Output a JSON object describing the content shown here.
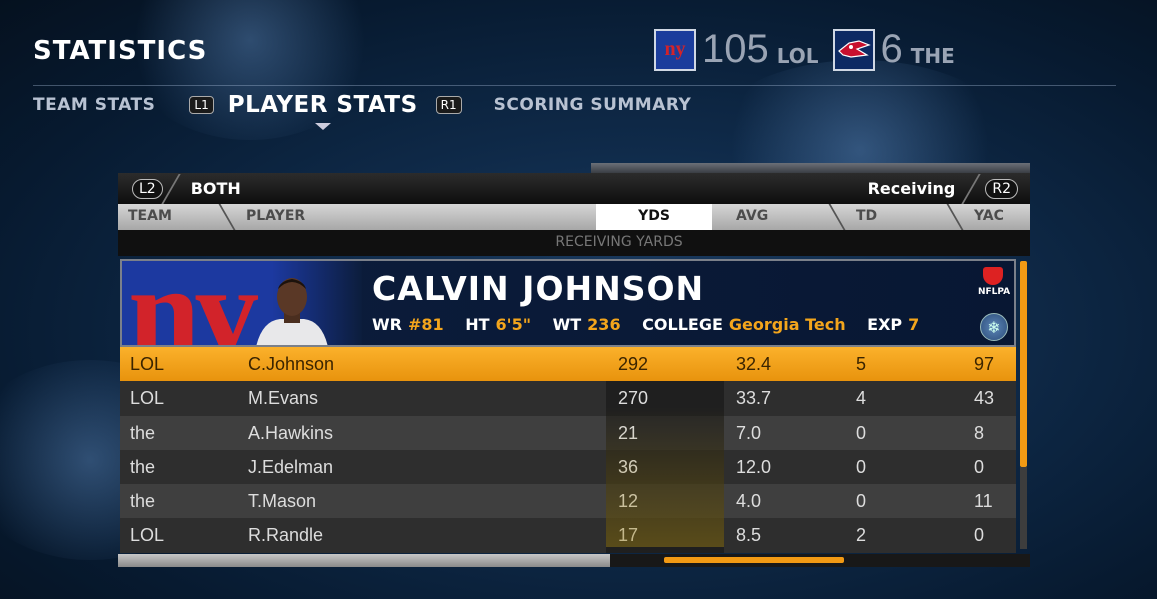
{
  "header": {
    "title": "STATISTICS",
    "home_logo_text": "ny",
    "home_score": "105",
    "home_abbr": "LOL",
    "away_score": "6",
    "away_abbr": "THE"
  },
  "tabs": {
    "team_stats": "TEAM STATS",
    "l1": "L1",
    "player_stats": "PLAYER STATS",
    "r1": "R1",
    "scoring_summary": "SCORING SUMMARY"
  },
  "filter": {
    "l2": "L2",
    "team_filter": "BOTH",
    "category": "Receiving",
    "r2": "R2"
  },
  "columns": {
    "team": "TEAM",
    "player": "PLAYER",
    "yds": "YDS",
    "avg": "AVG",
    "td": "TD",
    "yac": "YAC",
    "sort_label": "RECEIVING YARDS"
  },
  "player_card": {
    "logo_text": "ny",
    "name": "CALVIN JOHNSON",
    "pos_label": "WR",
    "pos_value": "#81",
    "ht_label": "HT",
    "ht_value": "6'5\"",
    "wt_label": "WT",
    "wt_value": "236",
    "college_label": "COLLEGE",
    "college_value": "Georgia Tech",
    "exp_label": "EXP",
    "exp_value": "7",
    "nflpa": "NFLPA"
  },
  "rows": [
    {
      "team": "LOL",
      "player": "C.Johnson",
      "yds": "292",
      "avg": "32.4",
      "td": "5",
      "yac": "97"
    },
    {
      "team": "LOL",
      "player": "M.Evans",
      "yds": "270",
      "avg": "33.7",
      "td": "4",
      "yac": "43"
    },
    {
      "team": "the",
      "player": "A.Hawkins",
      "yds": "21",
      "avg": "7.0",
      "td": "0",
      "yac": "8"
    },
    {
      "team": "the",
      "player": "J.Edelman",
      "yds": "36",
      "avg": "12.0",
      "td": "0",
      "yac": "0"
    },
    {
      "team": "the",
      "player": "T.Mason",
      "yds": "12",
      "avg": "4.0",
      "td": "0",
      "yac": "11"
    },
    {
      "team": "LOL",
      "player": "R.Randle",
      "yds": "17",
      "avg": "8.5",
      "td": "2",
      "yac": "0"
    }
  ],
  "colors": {
    "accent": "#f29a14",
    "highlight_value": "#f3a51c",
    "giants_blue": "#1c39a0",
    "giants_red": "#d2232a"
  }
}
